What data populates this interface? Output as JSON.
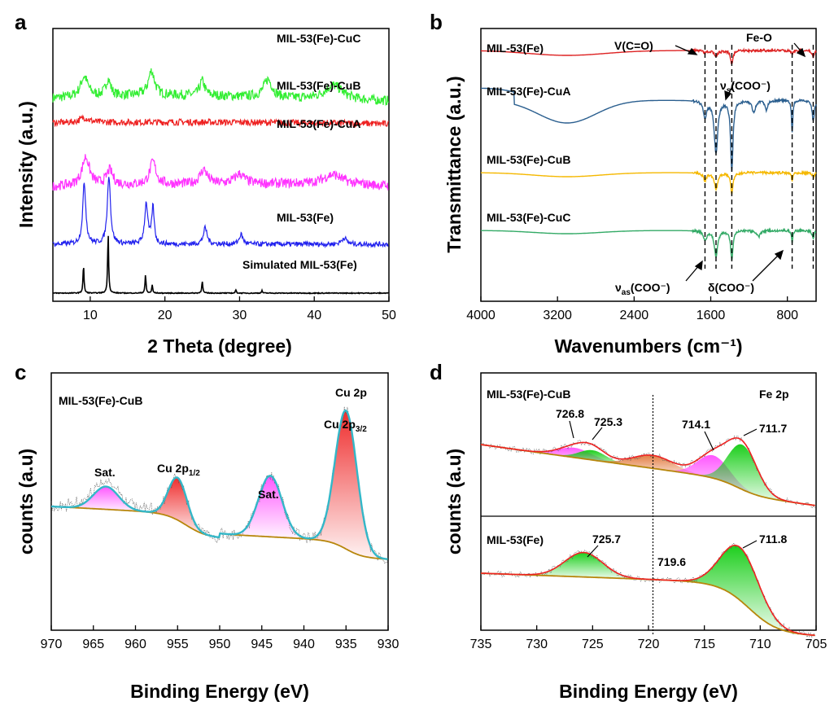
{
  "colors": {
    "green": "#33ee33",
    "red": "#ee2222",
    "magenta": "#ff33ff",
    "blue": "#2222ee",
    "black": "#000000",
    "ir_red": "#dd2222",
    "ir_blue": "#2b5f8f",
    "ir_yellow": "#f5b800",
    "ir_green": "#33aa66",
    "cyan": "#33b7c8",
    "baseline": "#b7860b",
    "pink_fill": "#ff55ff",
    "red_fill": "#ee3333",
    "orange_fill": "#e08040",
    "green_fill": "#22cc22"
  },
  "chart_data": [
    {
      "panel": "a",
      "type": "line",
      "xlabel": "2 Theta (degree)",
      "ylabel": "Intensity (a.u.)",
      "xlim": [
        5,
        50
      ],
      "xticks": [
        "10",
        "20",
        "30",
        "40",
        "50"
      ],
      "series": [
        {
          "name": "MIL-53(Fe)-CuC",
          "peaks": [
            9.2,
            12.4,
            18.2,
            25.0,
            33.8,
            42.6
          ]
        },
        {
          "name": "MIL-53(Fe)-CuB",
          "peaks": [
            9.2,
            21.0
          ]
        },
        {
          "name": "MIL-53(Fe)-CuA",
          "peaks": [
            9.4,
            12.6,
            18.4,
            25.2,
            30.0,
            42.5
          ]
        },
        {
          "name": "MIL-53(Fe)",
          "peaks": [
            9.2,
            12.5,
            17.5,
            18.4,
            25.4,
            30.2,
            44.0
          ]
        },
        {
          "name": "Simulated MIL-53(Fe)",
          "peaks": [
            9.1,
            12.4,
            17.4,
            18.3,
            25.0,
            29.5,
            33.0
          ]
        }
      ]
    },
    {
      "panel": "b",
      "type": "line",
      "xlabel": "Wavenumbers (cm⁻¹)",
      "ylabel": "Transmittance (a.u.)",
      "xlim": [
        4000,
        500
      ],
      "xticks": [
        "4000",
        "3200",
        "2400",
        "1600",
        "800"
      ],
      "series": [
        {
          "name": "MIL-53(Fe)"
        },
        {
          "name": "MIL-53(Fe)-CuA"
        },
        {
          "name": "MIL-53(Fe)-CuB"
        },
        {
          "name": "MIL-53(Fe)-CuC"
        }
      ],
      "reference_lines_cm": [
        1660,
        1545,
        1380,
        750,
        530
      ],
      "annotations": {
        "vco": "V(C=O)",
        "feo": "Fe-O",
        "nus": "(COO⁻)",
        "nuas": "(COO⁻)",
        "delta": "δ(COO⁻)",
        "nu": "ν",
        "s": "s",
        "as": "as"
      }
    },
    {
      "panel": "c",
      "type": "line",
      "xlabel": "Binding Energy (eV)",
      "ylabel": "counts (a.u)",
      "xlim": [
        970,
        930
      ],
      "xticks": [
        "970",
        "965",
        "960",
        "955",
        "950",
        "945",
        "940",
        "935",
        "930"
      ],
      "sample": "MIL-53(Fe)-CuB",
      "region": "Cu 2p",
      "peaks": [
        {
          "label": "Sat.",
          "center": 963.5
        },
        {
          "label": "Cu 2p",
          "sub": "1/2",
          "center": 955.0
        },
        {
          "label": "Sat.",
          "center": 944.0
        },
        {
          "label": "Cu 2p",
          "sub": "3/2",
          "center": 935.0
        }
      ]
    },
    {
      "panel": "d",
      "type": "line",
      "xlabel": "Binding Energy (eV)",
      "ylabel": "counts (a.u)",
      "xlim": [
        735,
        705
      ],
      "xticks": [
        "735",
        "730",
        "725",
        "720",
        "715",
        "710",
        "705"
      ],
      "region": "Fe 2p",
      "divider_ev": 719.6,
      "top": {
        "sample": "MIL-53(Fe)-CuB",
        "peaks": [
          "726.8",
          "725.3",
          "714.1",
          "711.7"
        ]
      },
      "bottom": {
        "sample": "MIL-53(Fe)",
        "peaks": [
          "725.7",
          "719.6",
          "711.8"
        ]
      }
    }
  ]
}
